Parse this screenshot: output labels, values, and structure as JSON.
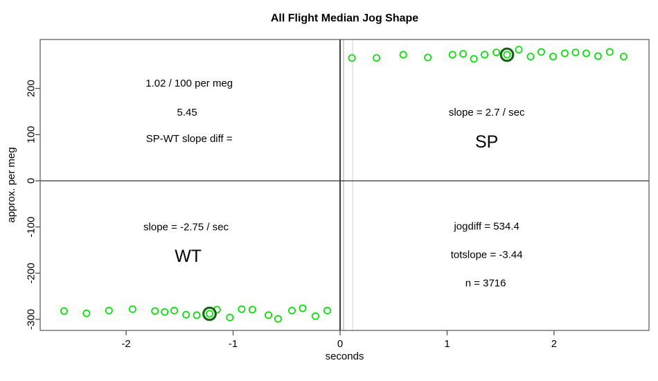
{
  "chart_data": {
    "type": "scatter",
    "title": "All Flight Median Jog Shape",
    "xlabel": "seconds",
    "ylabel": "approx. per meg",
    "xlim": [
      -2.803,
      2.887
    ],
    "ylim": [
      -324,
      306
    ],
    "x_ticks": [
      -2,
      -1,
      0,
      1,
      2
    ],
    "y_ticks": [
      -300,
      -200,
      -100,
      0,
      100,
      200
    ],
    "grid": false,
    "legend": "none",
    "point_color": "#00dd00",
    "highlight_color": "#146414",
    "axis_color": "#555555",
    "series": [
      {
        "name": "WT",
        "highlight_index": 9,
        "points": [
          [
            -2.58,
            -282
          ],
          [
            -2.37,
            -287
          ],
          [
            -2.16,
            -281
          ],
          [
            -1.94,
            -278
          ],
          [
            -1.73,
            -282
          ],
          [
            -1.64,
            -284
          ],
          [
            -1.55,
            -281
          ],
          [
            -1.44,
            -290
          ],
          [
            -1.34,
            -291
          ],
          [
            -1.22,
            -288
          ],
          [
            -1.15,
            -279
          ],
          [
            -1.03,
            -296
          ],
          [
            -0.92,
            -278
          ],
          [
            -0.82,
            -279
          ],
          [
            -0.67,
            -291
          ],
          [
            -0.58,
            -299
          ],
          [
            -0.45,
            -281
          ],
          [
            -0.35,
            -276
          ],
          [
            -0.23,
            -293
          ],
          [
            -0.12,
            -281
          ]
        ]
      },
      {
        "name": "SP",
        "highlight_index": 9,
        "points": [
          [
            0.11,
            266
          ],
          [
            0.34,
            266
          ],
          [
            0.59,
            273
          ],
          [
            0.82,
            267
          ],
          [
            1.05,
            273
          ],
          [
            1.15,
            275
          ],
          [
            1.25,
            264
          ],
          [
            1.35,
            273
          ],
          [
            1.46,
            278
          ],
          [
            1.56,
            273
          ],
          [
            1.67,
            284
          ],
          [
            1.78,
            269
          ],
          [
            1.88,
            279
          ],
          [
            1.99,
            269
          ],
          [
            2.1,
            276
          ],
          [
            2.2,
            278
          ],
          [
            2.3,
            276
          ],
          [
            2.41,
            270
          ],
          [
            2.52,
            279
          ],
          [
            2.65,
            269
          ]
        ]
      }
    ],
    "vlines": [
      {
        "t": 0.0,
        "color": "#3a3a3a",
        "width": 2
      },
      {
        "t": 0.032,
        "color": "#a8a8a8",
        "width": 1
      },
      {
        "t": 0.117,
        "color": "#cfcfcf",
        "width": 1
      }
    ],
    "hlines": [
      {
        "v": 0,
        "color": "#333333",
        "width": 1.2
      }
    ],
    "annotations": [
      {
        "text": "1.02 / 100 per meg",
        "t": -1.41,
        "v": 212,
        "size": 15
      },
      {
        "text": "5.45",
        "t": -1.43,
        "v": 149,
        "size": 15
      },
      {
        "text": "SP-WT slope diff =",
        "t": -1.41,
        "v": 92,
        "size": 15
      },
      {
        "text": "slope = 2.7 / sec",
        "t": 1.37,
        "v": 149,
        "size": 15
      },
      {
        "text": "SP",
        "t": 1.37,
        "v": 85,
        "size": 25
      },
      {
        "text": "slope = -2.75 / sec",
        "t": -1.44,
        "v": -99,
        "size": 15
      },
      {
        "text": "WT",
        "t": -1.42,
        "v": -162,
        "size": 25
      },
      {
        "text": "jogdiff = 534.4",
        "t": 1.37,
        "v": -98,
        "size": 15
      },
      {
        "text": "totslope = -3.44",
        "t": 1.37,
        "v": -159,
        "size": 15
      },
      {
        "text": "n = 3716",
        "t": 1.36,
        "v": -221,
        "size": 15
      }
    ]
  }
}
